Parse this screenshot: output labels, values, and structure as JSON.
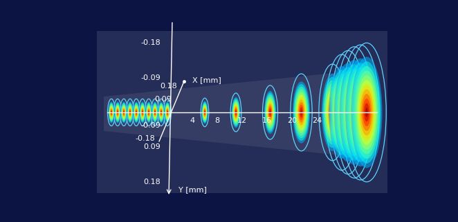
{
  "chart_data": {
    "type": "beam_slices_3d",
    "x_axis": {
      "label": "X [mm]",
      "ticks": [
        0.18,
        0.09,
        -0.09,
        -0.18
      ]
    },
    "y_axis": {
      "label": "Y [mm]",
      "ticks": [
        -0.18,
        -0.09,
        0.09,
        0.18
      ]
    },
    "z_axis": {
      "ticks": [
        4,
        8,
        12,
        16,
        20,
        24
      ]
    },
    "slices": {
      "z": [
        -9,
        -8,
        -7,
        -6,
        -5,
        -4,
        -3,
        -2,
        -1,
        0,
        6,
        11,
        16.5,
        21.5,
        26.5,
        28,
        29,
        30,
        31,
        32
      ],
      "radius": [
        0.035,
        0.035,
        0.035,
        0.035,
        0.035,
        0.035,
        0.035,
        0.035,
        0.035,
        0.035,
        0.037,
        0.05,
        0.07,
        0.1,
        0.125,
        0.15,
        0.16,
        0.17,
        0.175,
        0.18
      ]
    }
  }
}
